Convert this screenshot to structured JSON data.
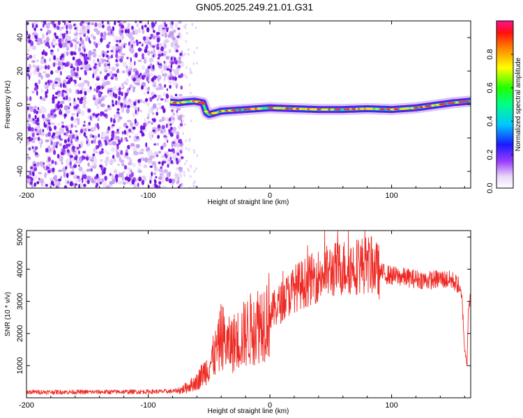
{
  "title": "GN05.2025.249.21.01.G31",
  "chart_data": [
    {
      "type": "heatmap",
      "title": "GN05.2025.249.21.01.G31",
      "xlabel": "Height of straight line (km)",
      "ylabel": "Frequency (Hz)",
      "xlim": [
        -200,
        165
      ],
      "ylim": [
        -50,
        50
      ],
      "xticks": [
        -200,
        -100,
        0,
        100
      ],
      "yticks": [
        -40,
        -20,
        0,
        20,
        40
      ],
      "colorbar": {
        "label": "Normalized spectral amplitude",
        "range": [
          0,
          1
        ],
        "ticks": [
          "0.0",
          "0.2",
          "0.4",
          "0.6",
          "0.8"
        ]
      },
      "noise_region_x": [
        -200,
        -72
      ],
      "ridge": {
        "x": [
          -82,
          -75,
          -70,
          -62,
          -55,
          -52,
          -50,
          -45,
          -40,
          -30,
          -20,
          -10,
          0,
          20,
          40,
          60,
          80,
          100,
          120,
          140,
          150,
          165
        ],
        "freq": [
          1.5,
          1.0,
          1.5,
          2.0,
          1.0,
          -5,
          -6,
          -5,
          -4,
          -3.5,
          -3,
          -2.5,
          -2,
          -2.5,
          -3,
          -3,
          -2.5,
          -3,
          -2,
          0,
          1,
          2
        ]
      }
    },
    {
      "type": "line",
      "xlabel": "Height of straight line (km)",
      "ylabel": "SNR (10 * v/v)",
      "xlim": [
        -200,
        165
      ],
      "ylim": [
        0,
        5200
      ],
      "xticks": [
        -200,
        -100,
        0,
        100
      ],
      "yticks": [
        1000,
        2000,
        3000,
        4000,
        5000
      ],
      "color": "#ee2a24",
      "series": [
        {
          "name": "SNR",
          "x": [
            -200,
            -150,
            -100,
            -80,
            -72,
            -60,
            -50,
            -42,
            -40,
            -35,
            -30,
            -20,
            -10,
            0,
            10,
            20,
            30,
            40,
            50,
            60,
            70,
            80,
            85,
            90,
            100,
            110,
            120,
            130,
            140,
            150,
            155,
            158,
            160,
            162,
            163,
            165
          ],
          "y": [
            180,
            180,
            190,
            200,
            250,
            500,
            1000,
            1600,
            2000,
            1600,
            1700,
            2000,
            2300,
            2600,
            3000,
            3400,
            3600,
            3800,
            3950,
            4050,
            4100,
            4150,
            4100,
            3900,
            3800,
            3750,
            3700,
            3650,
            3700,
            3650,
            3500,
            3000,
            1500,
            1050,
            2800,
            3200
          ]
        }
      ]
    }
  ]
}
